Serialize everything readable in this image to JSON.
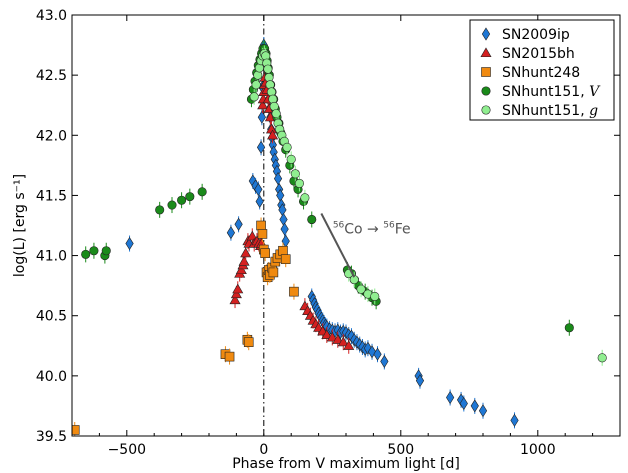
{
  "chart_data": {
    "type": "scatter",
    "xlabel": "Phase from V maximum light [d]",
    "ylabel": "log(L) [erg s⁻¹]",
    "xlim": [
      -700,
      1300
    ],
    "ylim": [
      39.5,
      43.0
    ],
    "x_ticks": [
      -500,
      0,
      500,
      1000
    ],
    "y_ticks": [
      39.5,
      40.0,
      40.5,
      41.0,
      41.5,
      42.0,
      42.5,
      43.0
    ],
    "grid": false,
    "legend_position": "top-right",
    "annotation": {
      "text_parts": [
        "56",
        "Co → ",
        "56",
        "Fe"
      ],
      "arrow_from": [
        210,
        41.3
      ],
      "arrow_to": [
        330,
        40.82
      ],
      "text_anchor": [
        230,
        41.25
      ]
    },
    "vertical_line": {
      "x": 0,
      "style": "dash-dot"
    },
    "series": [
      {
        "name": "SN2009ip",
        "marker": "diamond",
        "color": "#1f77d4",
        "points": [
          [
            -490,
            41.1
          ],
          [
            -120,
            41.19
          ],
          [
            -92,
            41.26
          ],
          [
            -40,
            41.62
          ],
          [
            -30,
            41.58
          ],
          [
            -20,
            41.55
          ],
          [
            -15,
            41.45
          ],
          [
            -10,
            41.9
          ],
          [
            -7,
            42.15
          ],
          [
            -5,
            42.4
          ],
          [
            -3,
            42.62
          ],
          [
            0,
            42.75
          ],
          [
            3,
            42.7
          ],
          [
            6,
            42.62
          ],
          [
            9,
            42.55
          ],
          [
            12,
            42.45
          ],
          [
            15,
            42.38
          ],
          [
            18,
            42.3
          ],
          [
            21,
            42.22
          ],
          [
            24,
            42.15
          ],
          [
            27,
            42.05
          ],
          [
            30,
            41.98
          ],
          [
            33,
            41.92
          ],
          [
            36,
            41.86
          ],
          [
            40,
            41.8
          ],
          [
            44,
            41.75
          ],
          [
            48,
            41.7
          ],
          [
            52,
            41.64
          ],
          [
            56,
            41.55
          ],
          [
            60,
            41.5
          ],
          [
            64,
            41.42
          ],
          [
            68,
            41.38
          ],
          [
            72,
            41.3
          ],
          [
            76,
            41.22
          ],
          [
            80,
            41.12
          ],
          [
            175,
            40.66
          ],
          [
            180,
            40.63
          ],
          [
            185,
            40.6
          ],
          [
            190,
            40.57
          ],
          [
            195,
            40.55
          ],
          [
            200,
            40.52
          ],
          [
            205,
            40.5
          ],
          [
            210,
            40.48
          ],
          [
            215,
            40.46
          ],
          [
            220,
            40.44
          ],
          [
            225,
            40.42
          ],
          [
            230,
            40.41
          ],
          [
            240,
            40.39
          ],
          [
            250,
            40.38
          ],
          [
            260,
            40.37
          ],
          [
            270,
            40.38
          ],
          [
            280,
            40.36
          ],
          [
            290,
            40.37
          ],
          [
            300,
            40.36
          ],
          [
            310,
            40.34
          ],
          [
            320,
            40.33
          ],
          [
            330,
            40.3
          ],
          [
            340,
            40.28
          ],
          [
            350,
            40.26
          ],
          [
            360,
            40.24
          ],
          [
            370,
            40.22
          ],
          [
            380,
            40.23
          ],
          [
            395,
            40.2
          ],
          [
            415,
            40.18
          ],
          [
            440,
            40.12
          ],
          [
            565,
            40.0
          ],
          [
            570,
            39.96
          ],
          [
            680,
            39.82
          ],
          [
            720,
            39.8
          ],
          [
            730,
            39.77
          ],
          [
            770,
            39.75
          ],
          [
            800,
            39.71
          ],
          [
            915,
            39.63
          ]
        ]
      },
      {
        "name": "SN2015bh",
        "marker": "triangle",
        "color": "#d42020",
        "points": [
          [
            -105,
            40.63
          ],
          [
            -100,
            40.68
          ],
          [
            -95,
            40.72
          ],
          [
            -88,
            40.85
          ],
          [
            -82,
            40.88
          ],
          [
            -76,
            40.92
          ],
          [
            -72,
            40.95
          ],
          [
            -66,
            41.02
          ],
          [
            -58,
            41.12
          ],
          [
            -54,
            41.1
          ],
          [
            -42,
            41.16
          ],
          [
            -35,
            41.1
          ],
          [
            -25,
            41.12
          ],
          [
            -18,
            41.1
          ],
          [
            -12,
            41.08
          ],
          [
            -8,
            41.1
          ],
          [
            -4,
            42.25
          ],
          [
            -2,
            42.3
          ],
          [
            0,
            42.36
          ],
          [
            2,
            42.42
          ],
          [
            4,
            42.48
          ],
          [
            8,
            42.44
          ],
          [
            12,
            42.38
          ],
          [
            16,
            42.3
          ],
          [
            20,
            42.22
          ],
          [
            24,
            42.15
          ],
          [
            28,
            42.05
          ],
          [
            32,
            42.0
          ],
          [
            150,
            40.58
          ],
          [
            160,
            40.54
          ],
          [
            170,
            40.5
          ],
          [
            180,
            40.46
          ],
          [
            190,
            40.43
          ],
          [
            200,
            40.4
          ],
          [
            215,
            40.37
          ],
          [
            230,
            40.34
          ],
          [
            250,
            40.32
          ],
          [
            270,
            40.3
          ],
          [
            290,
            40.28
          ],
          [
            310,
            40.25
          ]
        ]
      },
      {
        "name": "SNhunt248",
        "marker": "square",
        "color": "#f08a10",
        "points": [
          [
            -690,
            39.55
          ],
          [
            -140,
            40.18
          ],
          [
            -125,
            40.16
          ],
          [
            -60,
            40.3
          ],
          [
            -55,
            40.28
          ],
          [
            -10,
            41.25
          ],
          [
            -5,
            41.18
          ],
          [
            0,
            41.05
          ],
          [
            5,
            41.02
          ],
          [
            10,
            40.86
          ],
          [
            14,
            40.82
          ],
          [
            18,
            40.88
          ],
          [
            22,
            40.84
          ],
          [
            30,
            40.9
          ],
          [
            35,
            40.86
          ],
          [
            42,
            40.95
          ],
          [
            50,
            40.98
          ],
          [
            60,
            41.01
          ],
          [
            70,
            41.04
          ],
          [
            80,
            40.97
          ],
          [
            110,
            40.7
          ]
        ]
      },
      {
        "name": "SNhunt151, V",
        "label_text": "SNhunt151, ",
        "label_italic": "V",
        "marker": "circle",
        "color": "#1a8a1a",
        "points": [
          [
            -650,
            41.01
          ],
          [
            -620,
            41.04
          ],
          [
            -580,
            41.0
          ],
          [
            -575,
            41.04
          ],
          [
            -380,
            41.38
          ],
          [
            -335,
            41.42
          ],
          [
            -300,
            41.46
          ],
          [
            -270,
            41.49
          ],
          [
            -225,
            41.53
          ],
          [
            -45,
            42.3
          ],
          [
            -38,
            42.38
          ],
          [
            -32,
            42.45
          ],
          [
            -26,
            42.52
          ],
          [
            -20,
            42.58
          ],
          [
            -14,
            42.63
          ],
          [
            -8,
            42.68
          ],
          [
            -3,
            42.72
          ],
          [
            3,
            42.72
          ],
          [
            8,
            42.68
          ],
          [
            12,
            42.62
          ],
          [
            16,
            42.56
          ],
          [
            20,
            42.5
          ],
          [
            25,
            42.42
          ],
          [
            30,
            42.36
          ],
          [
            36,
            42.3
          ],
          [
            42,
            42.22
          ],
          [
            48,
            42.15
          ],
          [
            55,
            42.1
          ],
          [
            62,
            42.02
          ],
          [
            70,
            41.95
          ],
          [
            80,
            41.88
          ],
          [
            95,
            41.75
          ],
          [
            110,
            41.62
          ],
          [
            125,
            41.55
          ],
          [
            145,
            41.45
          ],
          [
            175,
            41.3
          ],
          [
            305,
            40.88
          ],
          [
            320,
            40.85
          ],
          [
            345,
            40.75
          ],
          [
            370,
            40.7
          ],
          [
            395,
            40.65
          ],
          [
            410,
            40.62
          ],
          [
            1115,
            40.4
          ]
        ]
      },
      {
        "name": "SNhunt151, g",
        "label_text": "SNhunt151, ",
        "label_italic": "g",
        "marker": "circle",
        "color": "#90ee90",
        "points": [
          [
            -35,
            42.32
          ],
          [
            -28,
            42.42
          ],
          [
            -22,
            42.5
          ],
          [
            -16,
            42.56
          ],
          [
            -10,
            42.62
          ],
          [
            -4,
            42.66
          ],
          [
            2,
            42.68
          ],
          [
            7,
            42.66
          ],
          [
            11,
            42.6
          ],
          [
            15,
            42.55
          ],
          [
            19,
            42.48
          ],
          [
            23,
            42.42
          ],
          [
            28,
            42.36
          ],
          [
            33,
            42.3
          ],
          [
            38,
            42.24
          ],
          [
            45,
            42.18
          ],
          [
            52,
            42.1
          ],
          [
            58,
            42.05
          ],
          [
            66,
            42.0
          ],
          [
            75,
            41.95
          ],
          [
            85,
            41.9
          ],
          [
            100,
            41.8
          ],
          [
            115,
            41.68
          ],
          [
            130,
            41.6
          ],
          [
            150,
            41.48
          ],
          [
            310,
            40.85
          ],
          [
            330,
            40.8
          ],
          [
            355,
            40.72
          ],
          [
            380,
            40.68
          ],
          [
            405,
            40.66
          ],
          [
            1235,
            40.15
          ]
        ]
      }
    ]
  }
}
